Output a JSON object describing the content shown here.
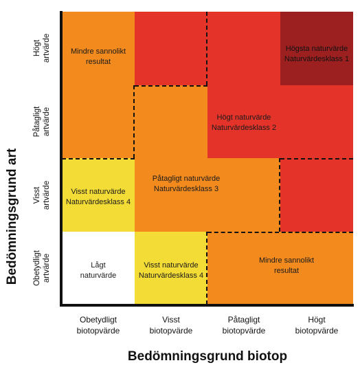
{
  "axes": {
    "y_title": "Bedömningsgrund art",
    "x_title": "Bedömningsgrund biotop",
    "y_ticks": [
      "Högt\nartvärde",
      "Påtagligt\nartvärde",
      "Visst\nartvärde",
      "Obetydligt\nartvärde"
    ],
    "x_ticks": [
      "Obetydligt\nbiotopvärde",
      "Visst\nbiotopvärde",
      "Påtagligt\nbiotopvärde",
      "Högt\nbiotopvärde"
    ]
  },
  "colors": {
    "orange": "#f28a1e",
    "red": "#e4342a",
    "dark_red": "#9c2020",
    "yellow": "#f4dc36",
    "white": "#ffffff"
  },
  "grid": [
    [
      "orange",
      "red",
      "red",
      "dark_red"
    ],
    [
      "orange",
      "orange",
      "red",
      "red"
    ],
    [
      "yellow",
      "orange",
      "orange",
      "red"
    ],
    [
      "white",
      "yellow",
      "orange",
      "orange"
    ]
  ],
  "regions": {
    "r1": "Mindre sannolikt\nresultat",
    "r2": "Högsta naturvärde\nNaturvärdesklass 1",
    "r3": "Högt naturvärde\nNaturvärdesklass 2",
    "r4": "Påtagligt naturvärde\nNaturvärdesklass 3",
    "r5": "Visst naturvärde\nNaturvärdesklass 4",
    "r6": "Lågt\nnaturvärde",
    "r7": "Visst naturvärde\nNaturvärdesklass 4",
    "r8": "Mindre sannolikt\nresultat"
  }
}
